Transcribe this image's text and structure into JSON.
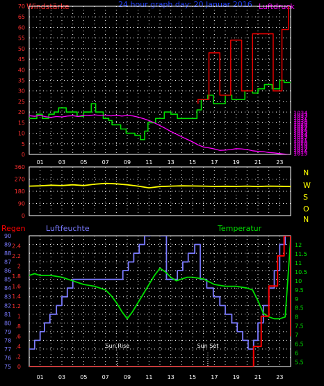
{
  "header": {
    "title": "24 hour graph day: 20 Januar 2016",
    "left_label": "Windstärke",
    "right_label": "Luftdruck"
  },
  "compass_labels": [
    "N",
    "W",
    "S",
    "O",
    "N"
  ],
  "bottom_labels": {
    "regen": "Regen",
    "luftfeuchte": "Luftfeuchte",
    "temperatur": "Temperatur",
    "sun_rise": "Sun Rise",
    "sun_set": "Sun Set"
  },
  "colors": {
    "background": "#000000",
    "frame": "#ffffff",
    "grid": "#ffffff",
    "wind": "#00dd00",
    "wind_axis": "#ff3030",
    "pressure": "#ff00ff",
    "pressure_axis": "#ff00ff",
    "title": "#2040ff",
    "gust": "#e00000",
    "direction": "#ffff00",
    "humidity": "#7b7bff",
    "temperature": "#00e000",
    "rain": "#ff0000",
    "compass": "#ffff00"
  },
  "chart_data": [
    {
      "type": "line",
      "id": "wind_pressure",
      "x_ticks": [
        "01",
        "03",
        "05",
        "07",
        "09",
        "11",
        "13",
        "15",
        "17",
        "19",
        "21",
        "23"
      ],
      "xlim": [
        0,
        24
      ],
      "left_axis": {
        "ylim": [
          0,
          70
        ],
        "ticks": [
          0,
          5,
          10,
          15,
          20,
          25,
          30,
          35,
          40,
          45,
          50,
          55,
          60,
          65,
          70
        ]
      },
      "right_axis": {
        "ylim": [
          1014.5,
          1084.5
        ],
        "ticks": [
          1015,
          1016,
          1017,
          1018,
          1019,
          1020,
          1021,
          1022,
          1023,
          1024,
          1025,
          1026,
          1027,
          1028,
          1029,
          1030,
          1031,
          1032,
          1033,
          1034,
          1035,
          1036,
          1037,
          1038,
          1039,
          1040,
          1041,
          1042,
          1043,
          1044,
          1045,
          1046,
          1047,
          1048,
          1049,
          1050,
          1051,
          1052,
          1053,
          1054,
          1055,
          1056,
          1057,
          1058,
          1059,
          1060,
          1061,
          1062,
          1063,
          1064,
          1065,
          1066,
          1067,
          1068,
          1069,
          1070,
          1071,
          1072,
          1073,
          1074,
          1075,
          1076,
          1077,
          1078,
          1079,
          1080,
          1081,
          1082,
          1083,
          1084
        ],
        "shown_ticks": [
          1015,
          1016,
          1017,
          1018,
          1019,
          1020,
          1021,
          1022,
          1023,
          1024,
          1025,
          1026,
          1027,
          1028,
          1029,
          1030,
          1031,
          1032,
          1033,
          1034
        ]
      },
      "grid": true,
      "series": [
        {
          "role": "wind",
          "axis": "left",
          "step": true,
          "x": [
            0,
            0.7,
            0.7,
            1.2,
            1.2,
            1.8,
            1.8,
            2.3,
            2.3,
            2.7,
            2.7,
            3.4,
            3.4,
            4.4,
            4.4,
            5.0,
            5.0,
            5.7,
            5.7,
            6.1,
            6.1,
            6.8,
            6.8,
            7.3,
            7.3,
            7.6,
            7.6,
            8.4,
            8.4,
            8.9,
            8.9,
            9.7,
            9.7,
            10.2,
            10.2,
            10.6,
            10.6,
            10.9,
            10.9,
            11.6,
            11.6,
            12.4,
            12.4,
            13.0,
            13.0,
            13.6,
            13.6,
            14.8,
            14.8,
            15.4,
            15.4,
            15.8,
            15.8,
            16.4,
            16.4,
            16.9,
            16.9,
            18.0,
            18.0,
            18.6,
            18.6,
            19.8,
            19.8,
            20.5,
            20.5,
            21.0,
            21.0,
            21.6,
            21.6,
            22.3,
            22.3,
            23.0,
            23.0,
            23.4,
            23.4,
            24
          ],
          "y": [
            17,
            17,
            19,
            19,
            17,
            17,
            19,
            19,
            20,
            20,
            22,
            22,
            20,
            20,
            18,
            18,
            20,
            20,
            24,
            24,
            20,
            20,
            17,
            17,
            16,
            16,
            14,
            14,
            12,
            12,
            10,
            10,
            9,
            9,
            7,
            7,
            11,
            11,
            15,
            15,
            17,
            17,
            20,
            20,
            19,
            19,
            17,
            17,
            17,
            17,
            21,
            21,
            26,
            26,
            28,
            28,
            24,
            24,
            28,
            28,
            26,
            26,
            30,
            30,
            29,
            29,
            31,
            31,
            33,
            33,
            31,
            31,
            35,
            35,
            34,
            34
          ]
        },
        {
          "role": "gust_max",
          "axis": "left",
          "step": true,
          "x": [
            15.5,
            15.5,
            16.5,
            16.5,
            17.5,
            17.5,
            18.5,
            18.5,
            19.5,
            19.5,
            20.5,
            20.5,
            22.4,
            22.4,
            23.2,
            23.2,
            23.8,
            23.8,
            24
          ],
          "y": [
            24,
            26,
            26,
            48,
            48,
            28,
            28,
            54,
            54,
            30,
            30,
            57,
            57,
            30,
            30,
            59,
            59,
            72,
            72
          ]
        },
        {
          "role": "pressure",
          "axis": "right",
          "x": [
            0,
            0.5,
            1,
            1.5,
            2,
            2.5,
            3,
            3.5,
            4,
            4.5,
            5,
            5.5,
            6,
            6.5,
            7,
            7.5,
            8,
            8.5,
            9,
            9.5,
            10,
            10.5,
            11,
            11.5,
            12,
            12.5,
            13,
            13.5,
            14,
            14.5,
            15,
            15.5,
            16,
            16.5,
            17,
            17.5,
            18,
            18.5,
            19,
            19.5,
            20,
            20.5,
            21,
            21.5,
            22,
            22.5,
            23,
            23.5,
            24
          ],
          "y": [
            1032.8,
            1032.5,
            1032.9,
            1032.3,
            1032.0,
            1032.4,
            1032.2,
            1032.6,
            1032.8,
            1032.4,
            1033.0,
            1032.8,
            1033.2,
            1032.9,
            1033.1,
            1032.7,
            1033.0,
            1032.6,
            1032.9,
            1032.7,
            1032.1,
            1031.4,
            1030.5,
            1029.4,
            1028.1,
            1026.8,
            1025.3,
            1024.1,
            1022.8,
            1021.6,
            1020.4,
            1019.0,
            1018.0,
            1017.6,
            1017.1,
            1016.4,
            1016.5,
            1016.8,
            1017.2,
            1017.1,
            1016.8,
            1016.2,
            1015.9,
            1015.8,
            1015.4,
            1015.2,
            1014.9,
            1014.6,
            1014.3
          ]
        }
      ]
    },
    {
      "type": "line",
      "id": "wind_direction",
      "ylim": [
        0,
        360
      ],
      "y_ticks": [
        0,
        90,
        180,
        270,
        360
      ],
      "grid": true,
      "series": [
        {
          "role": "direction",
          "x": [
            0,
            1,
            2,
            3,
            4,
            5,
            6,
            7,
            8,
            9,
            10,
            11,
            12,
            13,
            14,
            15,
            16,
            17,
            18,
            19,
            20,
            21,
            22,
            23,
            24
          ],
          "y": [
            218,
            220,
            225,
            222,
            228,
            222,
            232,
            238,
            235,
            228,
            218,
            205,
            215,
            218,
            220,
            219,
            218,
            216,
            217,
            216,
            218,
            215,
            218,
            217,
            215
          ]
        }
      ]
    },
    {
      "type": "line",
      "id": "rain_humidity_temperature",
      "axes": {
        "regen": {
          "ylim": [
            0,
            2.6
          ],
          "ticks": [
            0,
            0.2,
            0.4,
            0.6,
            0.8,
            1,
            1.2,
            1.4,
            1.6,
            1.8,
            2,
            2.2,
            2.4
          ]
        },
        "luftfeuchte": {
          "ylim": [
            75,
            90
          ],
          "ticks": [
            75,
            76,
            77,
            78,
            79,
            80,
            81,
            82,
            83,
            84,
            85,
            86,
            87,
            88,
            89,
            90
          ]
        },
        "temperatur": {
          "ylim": [
            5.25,
            12.5
          ],
          "ticks": [
            5.5,
            6,
            6.5,
            7,
            7.5,
            8,
            8.5,
            9,
            9.5,
            10,
            10.5,
            11,
            11.5,
            12
          ]
        }
      },
      "grid": true,
      "series": [
        {
          "role": "humidity",
          "axis": "luftfeuchte",
          "step": true,
          "x": [
            0,
            0.5,
            0.5,
            1,
            1,
            1.4,
            1.4,
            1.9,
            1.9,
            2.5,
            2.5,
            3,
            3,
            3.5,
            3.5,
            4,
            4,
            4.5,
            4.5,
            8.6,
            8.6,
            9.1,
            9.1,
            9.6,
            9.6,
            10.1,
            10.1,
            10.6,
            10.6,
            11.1,
            11.1,
            12.1,
            12.1,
            12.6,
            12.6,
            13.6,
            13.6,
            14.1,
            14.1,
            14.6,
            14.6,
            15.2,
            15.2,
            15.7,
            15.7,
            16.3,
            16.3,
            16.9,
            16.9,
            17.5,
            17.5,
            18,
            18,
            18.6,
            18.6,
            19.1,
            19.1,
            19.6,
            19.6,
            20.1,
            20.1,
            20.6,
            20.6,
            21,
            21,
            21.5,
            21.5,
            22,
            22,
            22.5,
            22.5,
            23,
            23,
            23.5,
            23.5,
            24
          ],
          "y": [
            77,
            77,
            78,
            78,
            79,
            79,
            80,
            80,
            81,
            81,
            82,
            82,
            83,
            83,
            84,
            84,
            85,
            85,
            85,
            85,
            86,
            86,
            87,
            87,
            88,
            88,
            89,
            89,
            90,
            90,
            91,
            91,
            90,
            90,
            85,
            85,
            86,
            86,
            87,
            87,
            88,
            88,
            89,
            89,
            85,
            85,
            84,
            84,
            83,
            83,
            82,
            82,
            81,
            81,
            80,
            80,
            79,
            79,
            78,
            78,
            77,
            77,
            78,
            78,
            80,
            80,
            82,
            82,
            84,
            84,
            86,
            86,
            89,
            89,
            91,
            91
          ]
        },
        {
          "role": "temperature",
          "axis": "temperatur",
          "x": [
            0,
            0.5,
            1,
            2,
            3,
            4,
            5,
            6,
            7,
            7.5,
            8,
            8.5,
            9,
            9.5,
            10,
            10.5,
            11,
            11.5,
            12,
            12.5,
            13,
            13.5,
            14,
            14.5,
            15,
            16,
            17,
            18,
            19,
            20,
            20.5,
            21,
            21.5,
            22,
            22.5,
            23,
            23.5,
            24
          ],
          "y": [
            10.3,
            10.4,
            10.3,
            10.3,
            10.2,
            10.0,
            9.8,
            9.7,
            9.5,
            9.2,
            8.8,
            8.3,
            7.9,
            8.3,
            8.8,
            9.3,
            9.8,
            10.3,
            10.7,
            10.5,
            10.2,
            10.0,
            10.1,
            10.2,
            10.2,
            10.1,
            9.8,
            9.7,
            9.7,
            9.6,
            9.5,
            8.9,
            8.2,
            8.0,
            7.9,
            7.9,
            8.0,
            12.3
          ]
        },
        {
          "role": "rain",
          "axis": "regen",
          "step": true,
          "x": [
            0,
            20.6,
            20.6,
            21.3,
            21.3,
            22.0,
            22.0,
            22.8,
            22.8,
            23.4,
            23.4,
            24,
            24
          ],
          "y": [
            0,
            0,
            0.4,
            0.4,
            1.0,
            1.0,
            1.6,
            1.6,
            2.2,
            2.2,
            2.6,
            2.6,
            0.6
          ]
        }
      ],
      "annotations": [
        {
          "label_key": "sun_rise",
          "x": 8.1
        },
        {
          "label_key": "sun_set",
          "x": 16.4
        }
      ]
    }
  ]
}
